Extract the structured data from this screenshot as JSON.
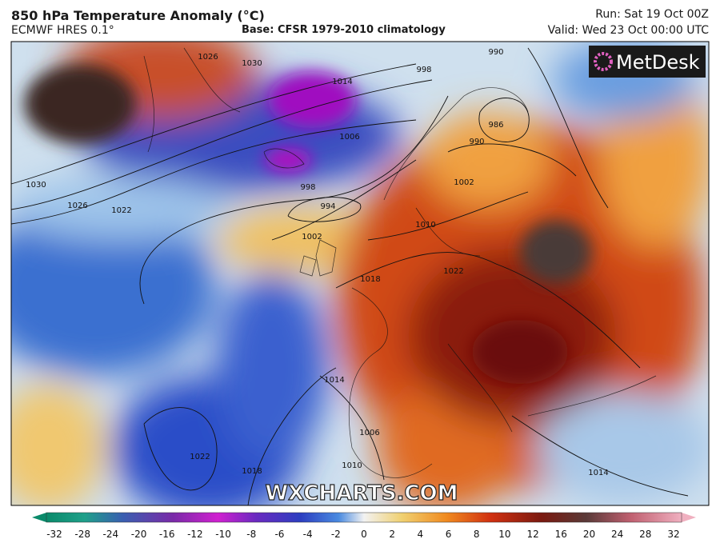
{
  "header": {
    "title": "850 hPa Temperature Anomaly (°C)",
    "model": "ECMWF HRES 0.1°",
    "base": "Base: CFSR 1979-2010 climatology",
    "run": "Run: Sat 19 Oct 00Z",
    "valid": "Valid: Wed 23 Oct 00:00 UTC"
  },
  "logo": "MetDesk",
  "watermark": "WXCHARTS.COM",
  "isobar_labels": [
    1030,
    1026,
    1022,
    998,
    994,
    1002,
    1006,
    1010,
    1018,
    1022,
    1002,
    990,
    986,
    990,
    998,
    1014,
    1006,
    1010,
    1018,
    1022,
    1014,
    1026,
    1030,
    1014
  ],
  "colorbar_ticks": [
    -32,
    -28,
    -24,
    -20,
    -16,
    -12,
    -10,
    -8,
    -6,
    -4,
    -2,
    0,
    2,
    4,
    6,
    8,
    10,
    12,
    16,
    20,
    24,
    28,
    32
  ]
}
